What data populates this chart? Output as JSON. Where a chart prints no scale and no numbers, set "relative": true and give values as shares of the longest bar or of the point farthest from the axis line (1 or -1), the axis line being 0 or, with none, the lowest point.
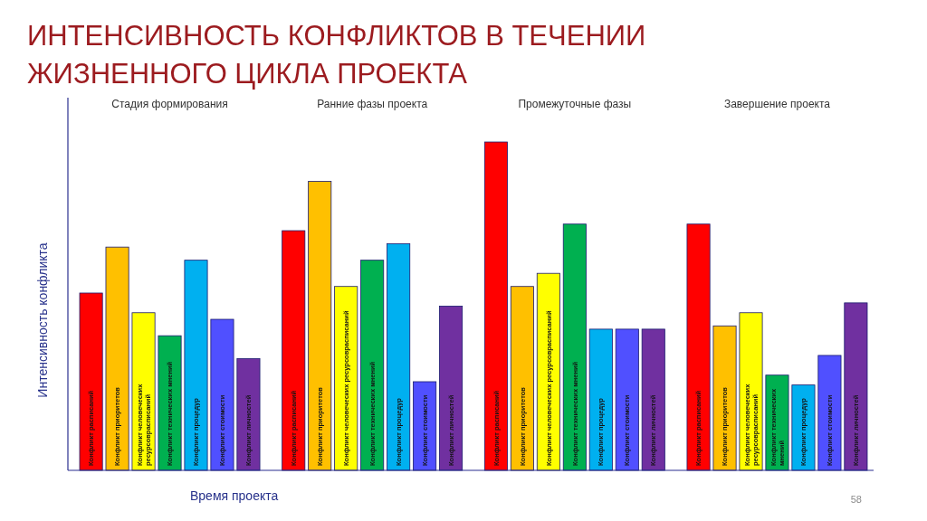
{
  "chart_data": {
    "type": "bar",
    "title": "ИНТЕНСИВНОСТЬ КОНФЛИКТОВ В ТЕЧЕНИИ ЖИЗНЕННОГО ЦИКЛА ПРОЕКТА",
    "xlabel": "Время проекта",
    "ylabel": "Интенсивность конфликта",
    "relative": true,
    "categories": [
      "Стадия формирования",
      "Ранние фазы проекта",
      "Промежуточные фазы",
      "Завершение проекта"
    ],
    "series": [
      {
        "name": "Конфликт расписаний",
        "color": "#ff0000",
        "values": [
          0.54,
          0.73,
          1,
          0.75
        ]
      },
      {
        "name": "Конфликт приоритетов",
        "color": "#ffc000",
        "values": [
          0.68,
          0.88,
          0.56,
          0.44
        ]
      },
      {
        "name": "Конфликт человеческих ресурсоврасписаний",
        "color": "#ffff00",
        "values": [
          0.48,
          0.56,
          0.6,
          0.48
        ]
      },
      {
        "name": "Конфликт технических мнений",
        "color": "#00b050",
        "values": [
          0.41,
          0.64,
          0.75,
          0.29
        ]
      },
      {
        "name": "Конфликт процедур",
        "color": "#00b0f0",
        "values": [
          0.64,
          0.69,
          0.43,
          0.26
        ]
      },
      {
        "name": "Конфликт стоимости",
        "color": "#5050ff",
        "values": [
          0.46,
          0.27,
          0.43,
          0.35
        ]
      },
      {
        "name": "Конфликт личностей",
        "color": "#7030a0",
        "values": [
          0.34,
          0.5,
          0.43,
          0.51
        ]
      }
    ],
    "annotations": [
      "58"
    ]
  }
}
